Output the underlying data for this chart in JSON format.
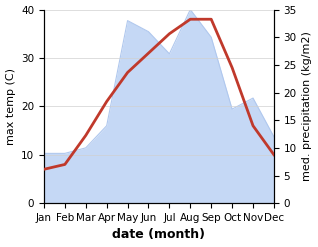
{
  "months": [
    "Jan",
    "Feb",
    "Mar",
    "Apr",
    "May",
    "Jun",
    "Jul",
    "Aug",
    "Sep",
    "Oct",
    "Nov",
    "Dec"
  ],
  "month_positions": [
    1,
    2,
    3,
    4,
    5,
    6,
    7,
    8,
    9,
    10,
    11,
    12
  ],
  "temperature": [
    7,
    8,
    14,
    21,
    27,
    31,
    35,
    38,
    38,
    28,
    16,
    10
  ],
  "precipitation": [
    9,
    9,
    10,
    14,
    33,
    31,
    27,
    35,
    30,
    17,
    19,
    12
  ],
  "temp_color": "#c0392b",
  "precip_fill_color": "#c5d8f5",
  "precip_edge_color": "#b0c8ee",
  "background_color": "#ffffff",
  "temp_ylim": [
    0,
    40
  ],
  "precip_ylim": [
    0,
    35
  ],
  "temp_yticks": [
    0,
    10,
    20,
    30,
    40
  ],
  "precip_yticks": [
    0,
    5,
    10,
    15,
    20,
    25,
    30,
    35
  ],
  "ylabel_left": "max temp (C)",
  "ylabel_right": "med. precipitation (kg/m2)",
  "xlabel": "date (month)",
  "temp_linewidth": 2.0,
  "xlabel_fontsize": 9,
  "ylabel_fontsize": 8,
  "tick_fontsize": 7.5,
  "grid_color": "#d0d0d0"
}
